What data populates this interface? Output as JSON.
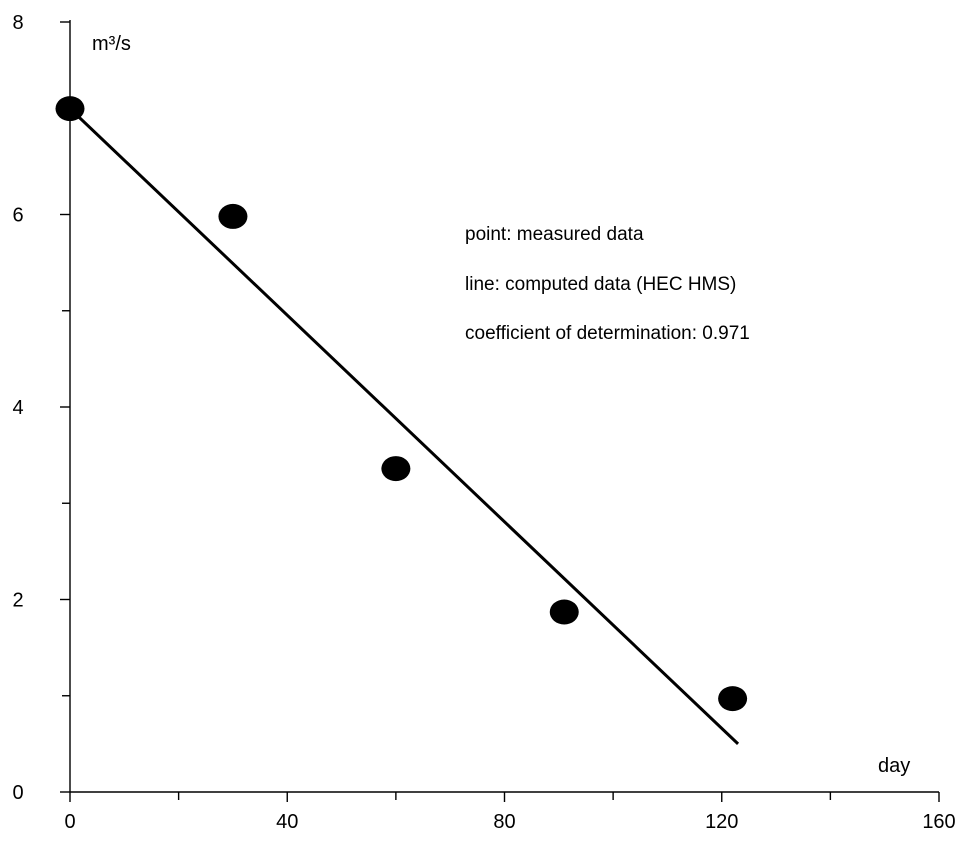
{
  "chart_data": {
    "type": "scatter",
    "title": "",
    "xlabel": "day",
    "ylabel": "m³/s",
    "xlim": [
      0,
      160
    ],
    "ylim": [
      0,
      8
    ],
    "x_ticks": [
      0,
      40,
      80,
      120,
      160
    ],
    "y_ticks": [
      0,
      2,
      4,
      6,
      8
    ],
    "x_minor_ticks": [
      20,
      60,
      100,
      140
    ],
    "y_minor_ticks": [
      1,
      3,
      5,
      7
    ],
    "grid": false,
    "series": [
      {
        "kind": "points",
        "x": [
          0,
          30,
          60,
          91,
          122
        ],
        "y": [
          7.1,
          5.98,
          3.36,
          1.87,
          0.97
        ]
      },
      {
        "kind": "line",
        "x": [
          0,
          123
        ],
        "y": [
          7.1,
          0.5
        ]
      }
    ],
    "annotations": [
      "point: measured data",
      "line: computed data (HEC HMS)",
      "coefficient of determination: 0.971"
    ]
  }
}
